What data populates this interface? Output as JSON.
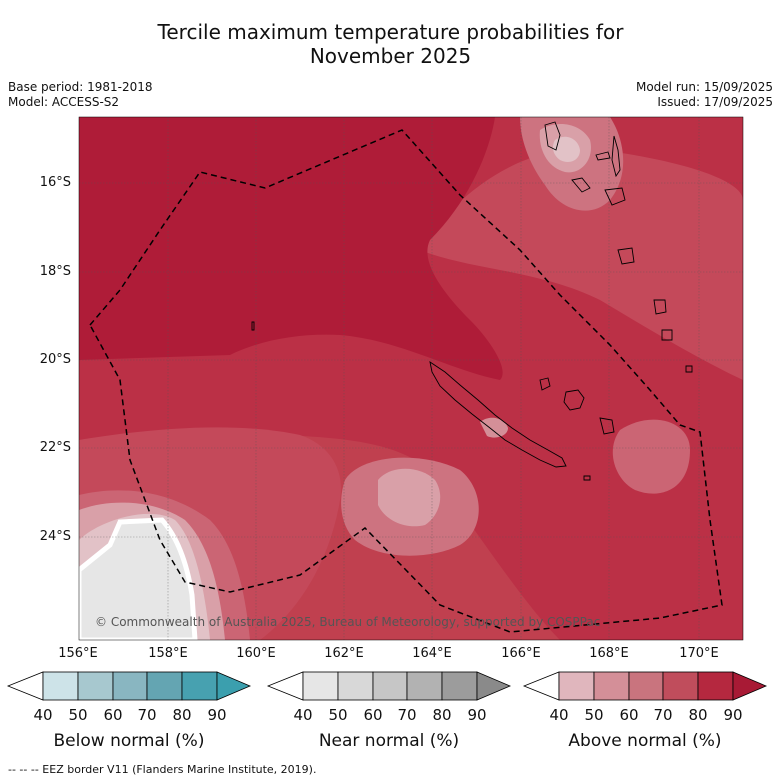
{
  "title_line1": "Tercile maximum temperature probabilities for",
  "title_line2": "November 2025",
  "base_period": "Base period: 1981-2018",
  "model": "Model: ACCESS-S2",
  "model_run": "Model run: 15/09/2025",
  "issued": "Issued: 17/09/2025",
  "copyright": "© Commonwealth of Australia 2025, Bureau of Meteorology, supported by COSPPac",
  "footer": "--  --  -- EEZ border V11 (Flanders Marine Institute, 2019).",
  "lat_labels": [
    "16°S",
    "18°S",
    "20°S",
    "22°S",
    "24°S"
  ],
  "lon_labels": [
    "156°E",
    "158°E",
    "160°E",
    "162°E",
    "164°E",
    "166°E",
    "168°E",
    "170°E"
  ],
  "map": {
    "lon_range": [
      155.5,
      171.0
    ],
    "lat_range": [
      -26.0,
      -14.8
    ],
    "gridlines": true,
    "region": "New Caledonia / Vanuatu",
    "border_style": "dashed"
  },
  "legend": {
    "ticks": [
      "40",
      "50",
      "60",
      "70",
      "80",
      "90"
    ],
    "groups": [
      {
        "label": "Below normal (%)",
        "colors": [
          "#ffffff",
          "#cde3e8",
          "#a7c8cf",
          "#89b6c1",
          "#64a5b2",
          "#47a1b0",
          "#3b9fae"
        ]
      },
      {
        "label": "Near normal (%)",
        "colors": [
          "#ffffff",
          "#e6e6e6",
          "#d8d8d8",
          "#c6c6c6",
          "#b2b2b2",
          "#9c9c9c",
          "#8a8a8a"
        ]
      },
      {
        "label": "Above normal (%)",
        "colors": [
          "#ffffff",
          "#e0b6bd",
          "#d48f98",
          "#c9747e",
          "#c04d5c",
          "#b5283f",
          "#a81a35"
        ]
      }
    ]
  },
  "colors": {
    "above_90": "#af1c38",
    "above_80": "#ba3048",
    "above_70": "#c24c5d",
    "above_60": "#cc7480",
    "above_50": "#d9a0a8",
    "above_40": "#e2c2c7",
    "near_normal": "#e6e6e6"
  }
}
